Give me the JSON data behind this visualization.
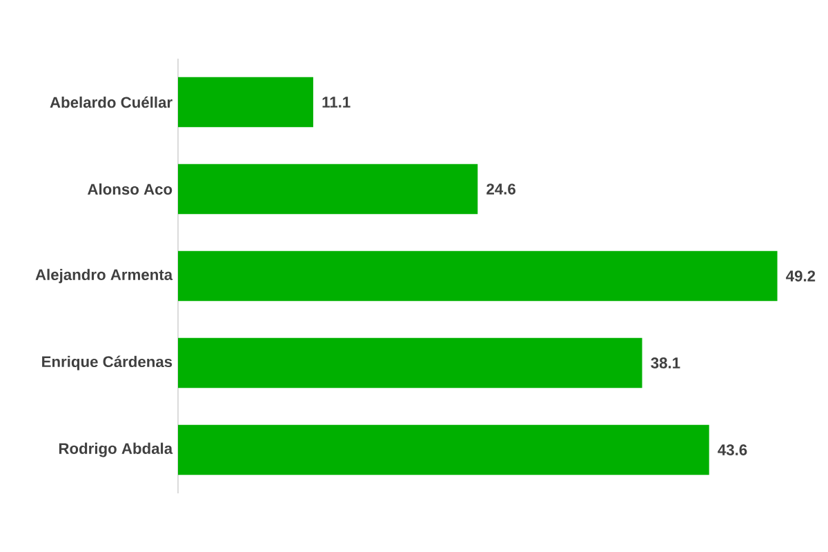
{
  "chart_data": {
    "type": "bar",
    "orientation": "horizontal",
    "categories": [
      "Abelardo Cuéllar",
      "Alonso Aco",
      "Alejandro Armenta",
      "Enrique Cárdenas",
      "Rodrigo Abdala"
    ],
    "values": [
      11.1,
      24.6,
      49.2,
      38.1,
      43.6
    ],
    "color": "#00b000",
    "data_labels": true
  }
}
